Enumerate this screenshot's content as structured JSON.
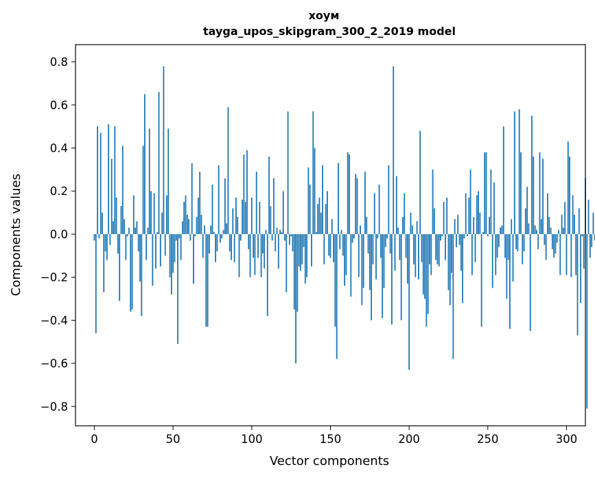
{
  "chart_data": {
    "type": "bar",
    "title": "хоум",
    "subtitle": "tayga_upos_skipgram_300_2_2019 model",
    "xlabel": "Vector components",
    "ylabel": "Components values",
    "xlim": [
      -12,
      312
    ],
    "ylim": [
      -0.89,
      0.88
    ],
    "xticks": [
      0,
      50,
      100,
      150,
      200,
      250,
      300
    ],
    "xtick_labels": [
      "0",
      "50",
      "100",
      "150",
      "200",
      "250",
      "300"
    ],
    "yticks": [
      -0.8,
      -0.6,
      -0.4,
      -0.2,
      0.0,
      0.2,
      0.4,
      0.6,
      0.8
    ],
    "ytick_labels": [
      "−0.8",
      "−0.6",
      "−0.4",
      "−0.2",
      "0.0",
      "0.2",
      "0.4",
      "0.6",
      "0.8"
    ],
    "bar_color": "#1f77b4",
    "grid": false,
    "values": [
      -0.03,
      -0.46,
      0.5,
      -0.02,
      0.47,
      0.1,
      -0.27,
      -0.08,
      -0.12,
      0.51,
      -0.05,
      0.35,
      0.06,
      0.5,
      0.17,
      -0.09,
      -0.31,
      0.13,
      0.41,
      0.07,
      -0.12,
      -0.01,
      0.03,
      -0.36,
      -0.35,
      0.18,
      0.03,
      0.06,
      -0.08,
      -0.22,
      -0.38,
      0.41,
      0.65,
      -0.12,
      0.03,
      0.49,
      0.2,
      -0.24,
      0.19,
      -0.16,
      0.01,
      0.66,
      -0.15,
      0.1,
      0.78,
      -0.1,
      0.18,
      0.49,
      -0.2,
      -0.28,
      -0.18,
      -0.13,
      -0.03,
      -0.51,
      -0.02,
      -0.12,
      0.06,
      0.15,
      0.18,
      0.09,
      0.07,
      -0.03,
      0.33,
      -0.23,
      -0.01,
      0.08,
      0.17,
      0.29,
      0.09,
      -0.11,
      0.04,
      -0.43,
      -0.43,
      -0.09,
      0.04,
      0.23,
      0.01,
      -0.13,
      -0.08,
      0.32,
      -0.04,
      -0.02,
      0.02,
      0.26,
      0.05,
      0.59,
      -0.08,
      -0.12,
      0.12,
      -0.13,
      0.17,
      0.08,
      -0.2,
      -0.03,
      0.16,
      0.37,
      0.15,
      0.39,
      -0.07,
      -0.2,
      0.17,
      -0.11,
      -0.19,
      0.29,
      -0.11,
      0.15,
      -0.2,
      -0.09,
      -0.16,
      0.02,
      -0.38,
      0.36,
      0.13,
      -0.03,
      0.26,
      -0.08,
      0.03,
      -0.16,
      0.02,
      0.01,
      0.2,
      -0.03,
      -0.27,
      0.57,
      -0.05,
      -0.01,
      -0.08,
      -0.35,
      -0.6,
      -0.36,
      -0.15,
      -0.17,
      -0.14,
      -0.06,
      -0.23,
      -0.2,
      0.31,
      0.23,
      -0.15,
      0.57,
      0.4,
      0.01,
      0.14,
      0.17,
      0.1,
      0.32,
      -0.14,
      0.14,
      0.2,
      -0.1,
      -0.11,
      0.07,
      -0.13,
      -0.43,
      -0.58,
      0.33,
      -0.07,
      0.02,
      -0.1,
      -0.24,
      -0.19,
      0.38,
      0.37,
      -0.29,
      -0.04,
      -0.02,
      0.28,
      0.26,
      -0.2,
      0.04,
      -0.33,
      -0.25,
      0.29,
      0.08,
      -0.09,
      -0.26,
      -0.4,
      -0.14,
      0.19,
      -0.21,
      -0.02,
      0.23,
      -0.11,
      -0.39,
      -0.25,
      -0.06,
      -0.02,
      0.32,
      -0.09,
      -0.42,
      0.78,
      -0.17,
      0.27,
      0.03,
      -0.12,
      -0.4,
      0.08,
      0.19,
      -0.11,
      -0.23,
      -0.63,
      0.1,
      0.04,
      -0.14,
      -0.2,
      0.06,
      -0.21,
      0.48,
      -0.13,
      -0.28,
      -0.3,
      -0.43,
      -0.37,
      -0.14,
      -0.19,
      0.3,
      0.12,
      -0.12,
      -0.14,
      -0.15,
      -0.03,
      -0.01,
      0.15,
      -0.12,
      0.17,
      -0.26,
      -0.33,
      -0.18,
      -0.58,
      0.07,
      -0.06,
      0.09,
      -0.05,
      -0.17,
      -0.32,
      -0.02,
      0.19,
      -0.01,
      0.17,
      0.3,
      -0.19,
      0.08,
      -0.13,
      0.18,
      0.2,
      0.1,
      -0.43,
      0.01,
      0.38,
      0.38,
      -0.01,
      0.08,
      0.3,
      -0.25,
      0.24,
      -0.19,
      -0.11,
      -0.06,
      0.03,
      0.04,
      0.5,
      -0.11,
      -0.3,
      -0.12,
      -0.44,
      0.07,
      -0.22,
      0.57,
      -0.07,
      -0.08,
      0.58,
      0.38,
      -0.14,
      -0.08,
      0.12,
      0.22,
      0.05,
      -0.45,
      0.55,
      0.36,
      0.04,
      0.02,
      -0.07,
      0.38,
      0.07,
      0.35,
      -0.05,
      -0.12,
      0.19,
      0.08,
      0.03,
      -0.07,
      -0.11,
      -0.09,
      -0.04,
      0.02,
      -0.19,
      0.09,
      0.03,
      0.15,
      -0.19,
      0.43,
      0.36,
      -0.2,
      0.18,
      0.09,
      -0.19,
      -0.47,
      0.12,
      -0.32,
      -0.01,
      -0.16,
      0.26,
      -0.81,
      0.16,
      -0.11,
      -0.06,
      0.1,
      -0.03
    ]
  }
}
